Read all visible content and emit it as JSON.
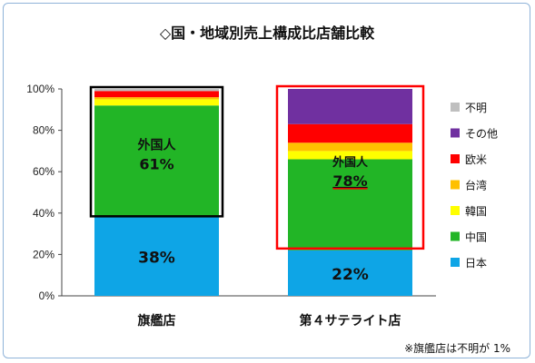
{
  "chart_data": {
    "type": "bar",
    "stacked": true,
    "title": "◇国・地域別売上構成比店舗比較",
    "categories": [
      "旗艦店",
      "第４サテライト店"
    ],
    "ylim": [
      0,
      100
    ],
    "yticks": [
      "0%",
      "20%",
      "40%",
      "60%",
      "80%",
      "100%"
    ],
    "grid": false,
    "legend_position": "right",
    "series": [
      {
        "name": "日本",
        "color": "#0ea5e6",
        "values": [
          38,
          22
        ]
      },
      {
        "name": "中国",
        "color": "#22b526",
        "values": [
          54,
          44
        ]
      },
      {
        "name": "韓国",
        "color": "#ffff00",
        "values": [
          3,
          4
        ]
      },
      {
        "name": "台湾",
        "color": "#ffc000",
        "values": [
          1,
          4
        ]
      },
      {
        "name": "欧米",
        "color": "#ff0000",
        "values": [
          3,
          9
        ]
      },
      {
        "name": "その他",
        "color": "#7030a0",
        "values": [
          0,
          17
        ]
      },
      {
        "name": "不明",
        "color": "#bfbfbf",
        "values": [
          1,
          0
        ]
      }
    ],
    "legend_order": [
      "不明",
      "その他",
      "欧米",
      "台湾",
      "韓国",
      "中国",
      "日本"
    ],
    "annotations": {
      "bar_labels": [
        {
          "top_label": "外国人",
          "top_value": "61%",
          "bottom_value": "38%"
        },
        {
          "top_label": "外国人",
          "top_value": "78%",
          "bottom_value": "22%"
        }
      ],
      "highlight_colors": [
        "#000000",
        "#ff0000"
      ]
    },
    "footnote": "※旗艦店は不明が 1%"
  }
}
